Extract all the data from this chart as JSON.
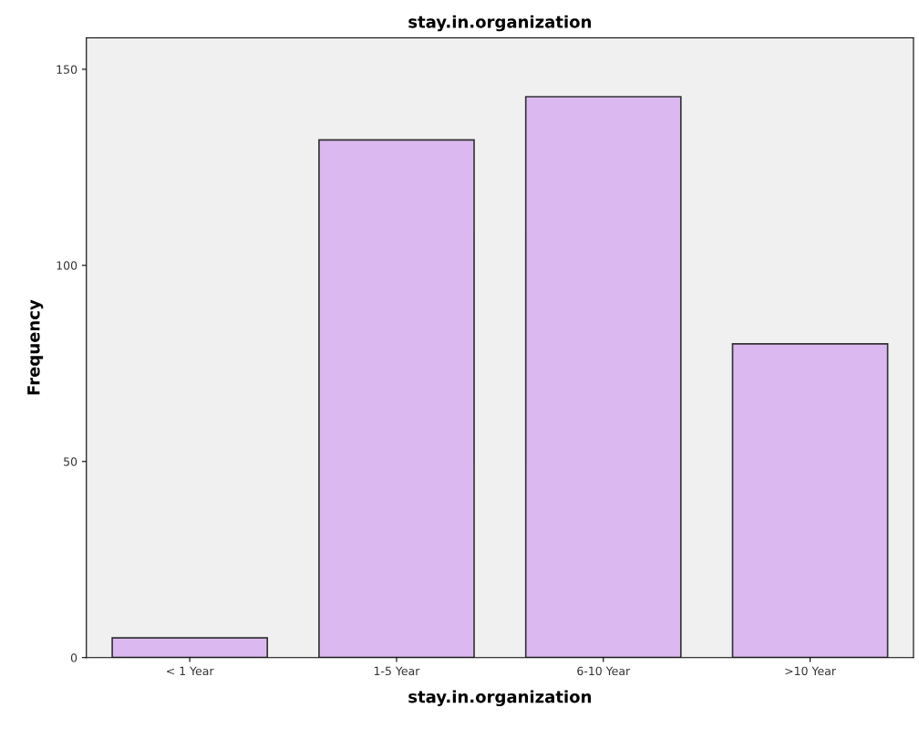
{
  "chart_data": {
    "type": "bar",
    "title": "stay.in.organization",
    "xlabel": "stay.in.organization",
    "ylabel": "Frequency",
    "categories": [
      "< 1 Year",
      "1-5 Year",
      "6-10 Year",
      ">10 Year"
    ],
    "values": [
      5,
      132,
      143,
      80
    ],
    "color": "#dcb8f0",
    "ylim": [
      0,
      158
    ],
    "yticks": [
      0,
      50,
      100,
      150
    ],
    "grid": false,
    "legend": false
  }
}
